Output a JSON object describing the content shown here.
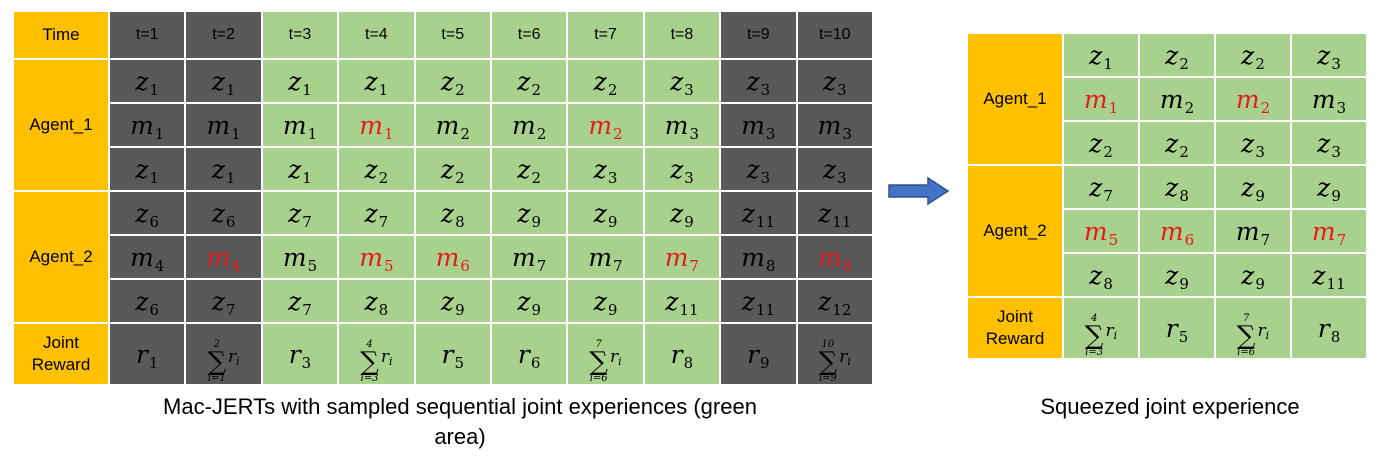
{
  "left_table": {
    "header": {
      "label": "Time",
      "times": [
        "t=1",
        "t=2",
        "t=3",
        "t=4",
        "t=5",
        "t=6",
        "t=7",
        "t=8",
        "t=9",
        "t=10"
      ]
    },
    "shade": [
      "dark",
      "dark",
      "green",
      "green",
      "green",
      "green",
      "green",
      "green",
      "dark",
      "dark"
    ],
    "agents": [
      {
        "label": "Agent_1",
        "rows": [
          [
            {
              "b": "z",
              "s": "1"
            },
            {
              "b": "z",
              "s": "1"
            },
            {
              "b": "z",
              "s": "1"
            },
            {
              "b": "z",
              "s": "1"
            },
            {
              "b": "z",
              "s": "2"
            },
            {
              "b": "z",
              "s": "2"
            },
            {
              "b": "z",
              "s": "2"
            },
            {
              "b": "z",
              "s": "3"
            },
            {
              "b": "z",
              "s": "3"
            },
            {
              "b": "z",
              "s": "3"
            }
          ],
          [
            {
              "b": "m",
              "s": "1"
            },
            {
              "b": "m",
              "s": "1"
            },
            {
              "b": "m",
              "s": "1"
            },
            {
              "b": "m",
              "s": "1",
              "red": true
            },
            {
              "b": "m",
              "s": "2"
            },
            {
              "b": "m",
              "s": "2"
            },
            {
              "b": "m",
              "s": "2",
              "red": true
            },
            {
              "b": "m",
              "s": "3"
            },
            {
              "b": "m",
              "s": "3"
            },
            {
              "b": "m",
              "s": "3"
            }
          ],
          [
            {
              "b": "z",
              "s": "1"
            },
            {
              "b": "z",
              "s": "1"
            },
            {
              "b": "z",
              "s": "1"
            },
            {
              "b": "z",
              "s": "2"
            },
            {
              "b": "z",
              "s": "2"
            },
            {
              "b": "z",
              "s": "2"
            },
            {
              "b": "z",
              "s": "3"
            },
            {
              "b": "z",
              "s": "3"
            },
            {
              "b": "z",
              "s": "3"
            },
            {
              "b": "z",
              "s": "3"
            }
          ]
        ]
      },
      {
        "label": "Agent_2",
        "rows": [
          [
            {
              "b": "z",
              "s": "6"
            },
            {
              "b": "z",
              "s": "6"
            },
            {
              "b": "z",
              "s": "7"
            },
            {
              "b": "z",
              "s": "7"
            },
            {
              "b": "z",
              "s": "8"
            },
            {
              "b": "z",
              "s": "9"
            },
            {
              "b": "z",
              "s": "9"
            },
            {
              "b": "z",
              "s": "9"
            },
            {
              "b": "z",
              "s": "11"
            },
            {
              "b": "z",
              "s": "11"
            }
          ],
          [
            {
              "b": "m",
              "s": "4"
            },
            {
              "b": "m",
              "s": "4",
              "red": true
            },
            {
              "b": "m",
              "s": "5"
            },
            {
              "b": "m",
              "s": "5",
              "red": true
            },
            {
              "b": "m",
              "s": "6",
              "red": true
            },
            {
              "b": "m",
              "s": "7"
            },
            {
              "b": "m",
              "s": "7"
            },
            {
              "b": "m",
              "s": "7",
              "red": true
            },
            {
              "b": "m",
              "s": "8"
            },
            {
              "b": "m",
              "s": "8",
              "red": true
            }
          ],
          [
            {
              "b": "z",
              "s": "6"
            },
            {
              "b": "z",
              "s": "7"
            },
            {
              "b": "z",
              "s": "7"
            },
            {
              "b": "z",
              "s": "8"
            },
            {
              "b": "z",
              "s": "9"
            },
            {
              "b": "z",
              "s": "9"
            },
            {
              "b": "z",
              "s": "9"
            },
            {
              "b": "z",
              "s": "11"
            },
            {
              "b": "z",
              "s": "11"
            },
            {
              "b": "z",
              "s": "12"
            }
          ]
        ]
      }
    ],
    "reward": {
      "label": "Joint Reward",
      "cells": [
        {
          "b": "r",
          "s": "1"
        },
        {
          "sum": true,
          "upper": "2",
          "lower": "i=1",
          "term": "r",
          "tsub": "i"
        },
        {
          "b": "r",
          "s": "3"
        },
        {
          "sum": true,
          "upper": "4",
          "lower": "i=3",
          "term": "r",
          "tsub": "i"
        },
        {
          "b": "r",
          "s": "5"
        },
        {
          "b": "r",
          "s": "6"
        },
        {
          "sum": true,
          "upper": "7",
          "lower": "i=6",
          "term": "r",
          "tsub": "i"
        },
        {
          "b": "r",
          "s": "8"
        },
        {
          "b": "r",
          "s": "9"
        },
        {
          "sum": true,
          "upper": "10",
          "lower": "i=9",
          "term": "r",
          "tsub": "i"
        }
      ]
    }
  },
  "right_table": {
    "shade": [
      "green",
      "green",
      "green",
      "green"
    ],
    "agents": [
      {
        "label": "Agent_1",
        "rows": [
          [
            {
              "b": "z",
              "s": "1"
            },
            {
              "b": "z",
              "s": "2"
            },
            {
              "b": "z",
              "s": "2"
            },
            {
              "b": "z",
              "s": "3"
            }
          ],
          [
            {
              "b": "m",
              "s": "1",
              "red": true
            },
            {
              "b": "m",
              "s": "2"
            },
            {
              "b": "m",
              "s": "2",
              "red": true
            },
            {
              "b": "m",
              "s": "3"
            }
          ],
          [
            {
              "b": "z",
              "s": "2"
            },
            {
              "b": "z",
              "s": "2"
            },
            {
              "b": "z",
              "s": "3"
            },
            {
              "b": "z",
              "s": "3"
            }
          ]
        ]
      },
      {
        "label": "Agent_2",
        "rows": [
          [
            {
              "b": "z",
              "s": "7"
            },
            {
              "b": "z",
              "s": "8"
            },
            {
              "b": "z",
              "s": "9"
            },
            {
              "b": "z",
              "s": "9"
            }
          ],
          [
            {
              "b": "m",
              "s": "5",
              "red": true
            },
            {
              "b": "m",
              "s": "6",
              "red": true
            },
            {
              "b": "m",
              "s": "7"
            },
            {
              "b": "m",
              "s": "7",
              "red": true
            }
          ],
          [
            {
              "b": "z",
              "s": "8"
            },
            {
              "b": "z",
              "s": "9"
            },
            {
              "b": "z",
              "s": "9"
            },
            {
              "b": "z",
              "s": "11"
            }
          ]
        ]
      }
    ],
    "reward": {
      "label": "Joint Reward",
      "cells": [
        {
          "sum": true,
          "upper": "4",
          "lower": "i=3",
          "term": "r",
          "tsub": "i"
        },
        {
          "b": "r",
          "s": "5"
        },
        {
          "sum": true,
          "upper": "7",
          "lower": "i=6",
          "term": "r",
          "tsub": "i"
        },
        {
          "b": "r",
          "s": "8"
        }
      ]
    }
  },
  "captions": {
    "left": "Mac-JERTs with sampled sequential joint experiences (green area)",
    "right": "Squeezed joint experience"
  },
  "colors": {
    "header_orange": "#FFC000",
    "dark_gray": "#595959",
    "green": "#A9D18E",
    "red": "#E8191E",
    "arrow_blue": "#4472C4"
  },
  "icons": {
    "arrow": "right-arrow-icon"
  }
}
